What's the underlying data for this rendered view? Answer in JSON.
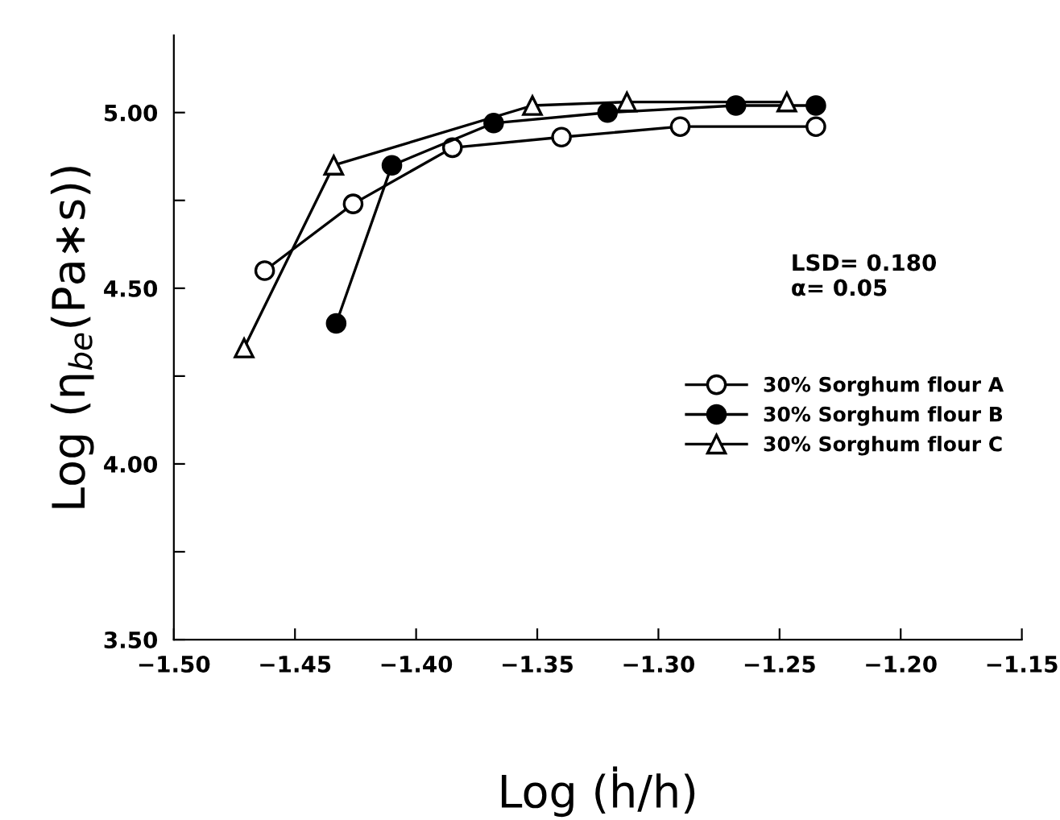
{
  "chart_data": {
    "type": "line",
    "xlabel": "Log (ḣ/h)",
    "ylabel": "Log (η$_{be}$(Pa∗s))",
    "xlim": [
      -1.5,
      -1.15
    ],
    "xticks": [
      {
        "value": -1.5,
        "label": "−1.50"
      },
      {
        "value": -1.45,
        "label": "−1.45"
      },
      {
        "value": -1.4,
        "label": "−1.40"
      },
      {
        "value": -1.35,
        "label": "−1.35"
      },
      {
        "value": -1.3,
        "label": "−1.30"
      },
      {
        "value": -1.25,
        "label": "−1.25"
      },
      {
        "value": -1.2,
        "label": "−1.20"
      },
      {
        "value": -1.15,
        "label": "−1.15"
      }
    ],
    "ylim": [
      3.5,
      5.22
    ],
    "yticks": [
      {
        "value": 3.5,
        "label": "3.50"
      },
      {
        "value": 3.75,
        "label": null
      },
      {
        "value": 4.0,
        "label": "4.00"
      },
      {
        "value": 4.25,
        "label": null
      },
      {
        "value": 4.5,
        "label": "4.50"
      },
      {
        "value": 4.75,
        "label": null
      },
      {
        "value": 5.0,
        "label": "5.00"
      }
    ],
    "grid": false,
    "legend": "right",
    "line_style": "solid",
    "annotations": [
      "LSD= 0.180\nα= 0.05"
    ],
    "series": [
      {
        "name": "30% Sorghum flour A",
        "color": "#000000",
        "marker": "circle",
        "x": [
          -1.4625,
          -1.426,
          -1.385,
          -1.34,
          -1.291,
          -1.235
        ],
        "values": [
          4.55,
          4.74,
          4.9,
          4.93,
          4.96,
          4.96
        ]
      },
      {
        "name": "30% Sorghum flour B",
        "color": "#000000",
        "marker": "circle",
        "x": [
          -1.433,
          -1.41,
          -1.368,
          -1.321,
          -1.268,
          -1.235
        ],
        "values": [
          4.4,
          4.85,
          4.97,
          5.0,
          5.02,
          5.02
        ]
      },
      {
        "name": "30% Sorghum flour C",
        "color": "#000000",
        "marker": "triangle",
        "x": [
          -1.471,
          -1.434,
          -1.352,
          -1.313,
          -1.247
        ],
        "values": [
          4.33,
          4.85,
          5.02,
          5.03,
          5.03
        ]
      }
    ]
  }
}
